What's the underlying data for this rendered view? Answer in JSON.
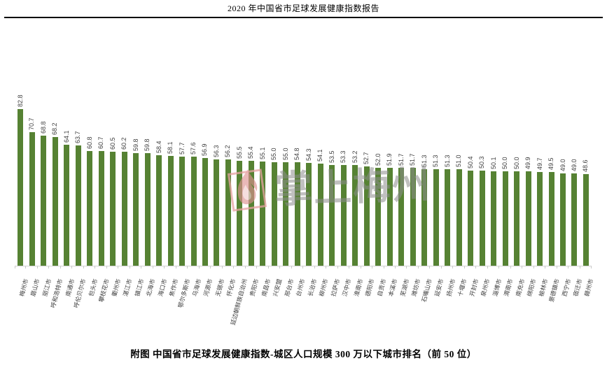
{
  "header": {
    "title": "2020 年中国省市足球发展健康指数报告"
  },
  "caption": {
    "text": "附图 中国省市足球发展健康指数-城区人口规模 300 万以下城市排名（前 50 位）"
  },
  "watermark": {
    "text": "掌上梅州",
    "logo": "flame-logo"
  },
  "colors": {
    "bar": "#568233",
    "axis": "#d2d2d2",
    "tick": "#c9c9c9",
    "value_label": "#3f3f3f",
    "category_label": "#404040",
    "watermark_text": "#8e8e8e",
    "watermark_logo": "#dd8f8f"
  },
  "chart_data": {
    "type": "bar",
    "title": "",
    "xlabel": "",
    "ylabel": "",
    "ylim": [
      0,
      90
    ],
    "grid": false,
    "legend": "none",
    "value_labels_rotated": true,
    "categories": [
      "梅州市",
      "眉山市",
      "丽江市",
      "呼和浩特市",
      "南通市",
      "呼伦贝尔市",
      "包头市",
      "攀枝花市",
      "衢州市",
      "湛江市",
      "镇江市",
      "北海市",
      "海口市",
      "焦作市",
      "鄂尔多斯市",
      "乌海市",
      "河源市",
      "无锡市",
      "怀化市",
      "延边朝鲜族自治州",
      "贵阳市",
      "南昌市",
      "兴安盟",
      "邢台市",
      "台州市",
      "长治市",
      "柳州市",
      "拉萨市",
      "汉中市",
      "淮南市",
      "德阳市",
      "自贡市",
      "本溪市",
      "芜湖市",
      "潍坊市",
      "石嘴山市",
      "延安市",
      "扬州市",
      "十堰市",
      "开封市",
      "泉州市",
      "淄博市",
      "渭南市",
      "南充市",
      "绵阳市",
      "榆林市",
      "景德镇市",
      "西宁市",
      "宿迁市",
      "赣州市"
    ],
    "values": [
      82.8,
      70.7,
      68.8,
      68.2,
      64.1,
      63.7,
      60.8,
      60.7,
      60.5,
      60.2,
      59.8,
      59.8,
      58.4,
      58.1,
      57.7,
      57.6,
      56.9,
      56.3,
      56.2,
      55.5,
      55.4,
      55.1,
      55.0,
      55.0,
      54.8,
      54.3,
      54.1,
      53.5,
      53.3,
      53.2,
      52.7,
      52.0,
      51.9,
      51.7,
      51.7,
      51.3,
      51.3,
      51.3,
      51.0,
      50.4,
      50.3,
      50.1,
      50.0,
      50.0,
      49.9,
      49.7,
      49.5,
      49.0,
      49.0,
      48.6
    ]
  }
}
